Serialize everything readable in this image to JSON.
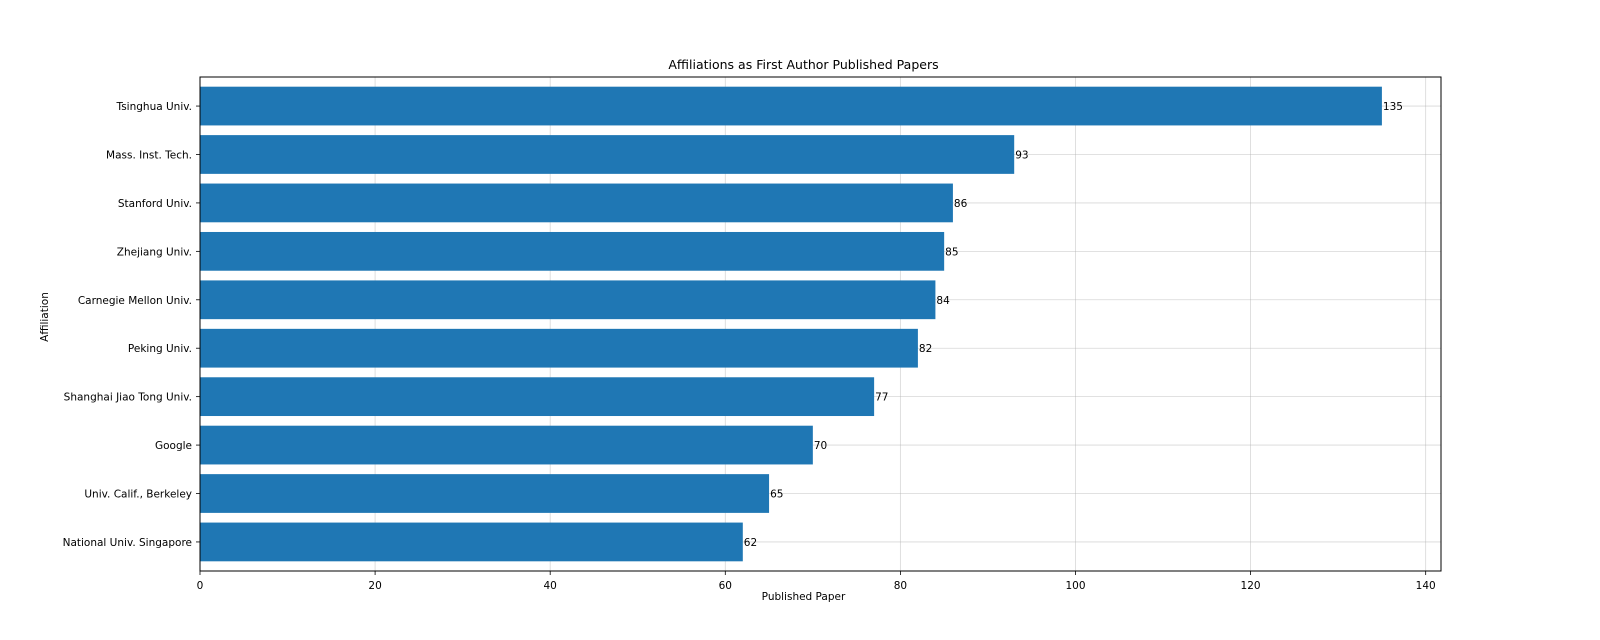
{
  "chart_data": {
    "type": "bar",
    "orientation": "horizontal",
    "title": "Affiliations as First Author Published Papers",
    "xlabel": "Published Paper",
    "ylabel": "Affiliation",
    "categories": [
      "Tsinghua Univ.",
      "Mass. Inst. Tech.",
      "Stanford Univ.",
      "Zhejiang Univ.",
      "Carnegie Mellon Univ.",
      "Peking Univ.",
      "Shanghai Jiao Tong Univ.",
      "Google",
      "Univ. Calif., Berkeley",
      "National Univ. Singapore"
    ],
    "values": [
      135,
      93,
      86,
      85,
      84,
      82,
      77,
      70,
      65,
      62
    ],
    "xlim": [
      0,
      141.75
    ],
    "xticks": [
      0,
      20,
      40,
      60,
      80,
      100,
      120,
      140
    ],
    "grid": true,
    "bar_color": "#1f77b4",
    "data_labels": true
  }
}
